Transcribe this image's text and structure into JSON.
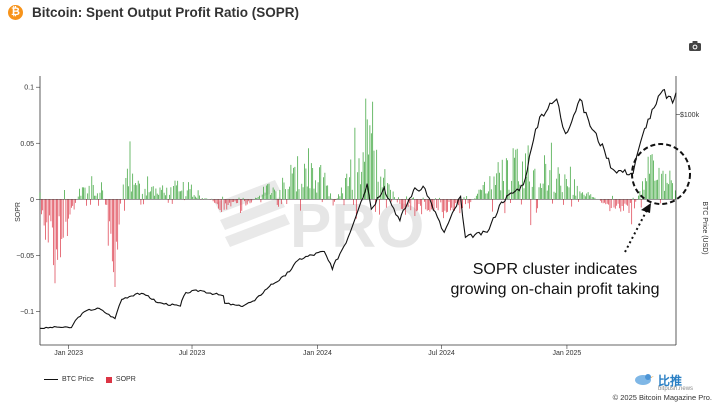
{
  "header": {
    "logo_glyph": "₿",
    "title": "Bitcoin: Spent Output Profit Ratio (SOPR)"
  },
  "toolbar": {
    "camera_icon": "camera-icon"
  },
  "chart_data": {
    "type": "bar",
    "title": "Bitcoin: Spent Output Profit Ratio (SOPR)",
    "x_range": [
      "2022-11-20",
      "2025-06-10"
    ],
    "x_ticks": [
      {
        "date": "2023-01-01",
        "label": "Jan 2023"
      },
      {
        "date": "2023-07-01",
        "label": "Jul 2023"
      },
      {
        "date": "2024-01-01",
        "label": "Jan 2024"
      },
      {
        "date": "2024-07-01",
        "label": "Jul 2024"
      },
      {
        "date": "2025-01-01",
        "label": "Jan 2025"
      }
    ],
    "y_left": {
      "label": "SOPR",
      "range": [
        -0.13,
        0.11
      ],
      "ticks": [
        {
          "v": 0.1,
          "label": "0.1"
        },
        {
          "v": 0.05,
          "label": "0.05"
        },
        {
          "v": 0,
          "label": "0"
        },
        {
          "v": -0.05,
          "label": "−0.05"
        },
        {
          "v": -0.1,
          "label": "−0.1"
        }
      ]
    },
    "y_right": {
      "label": "BTC Price (USD)",
      "range": [
        10000,
        115000
      ],
      "ticks": [
        {
          "v": 100000,
          "label": "$100k"
        }
      ]
    },
    "grid": false,
    "legend_position": "bottom-left",
    "colors": {
      "positive": "#2e9e2e",
      "negative": "#dc3545",
      "price": "#111111"
    },
    "btc_price": {
      "name": "BTC Price",
      "points": [
        [
          "2022-11-20",
          16500
        ],
        [
          "2022-12-15",
          17000
        ],
        [
          "2023-01-05",
          16800
        ],
        [
          "2023-01-15",
          20800
        ],
        [
          "2023-01-28",
          23500
        ],
        [
          "2023-02-15",
          24300
        ],
        [
          "2023-03-10",
          20300
        ],
        [
          "2023-03-20",
          27800
        ],
        [
          "2023-04-12",
          30200
        ],
        [
          "2023-04-28",
          29200
        ],
        [
          "2023-05-12",
          26500
        ],
        [
          "2023-06-14",
          25200
        ],
        [
          "2023-06-22",
          30500
        ],
        [
          "2023-07-13",
          31300
        ],
        [
          "2023-08-16",
          29200
        ],
        [
          "2023-08-18",
          26300
        ],
        [
          "2023-09-11",
          25100
        ],
        [
          "2023-10-01",
          27300
        ],
        [
          "2023-10-23",
          33000
        ],
        [
          "2023-11-15",
          37000
        ],
        [
          "2023-12-06",
          43700
        ],
        [
          "2024-01-11",
          46500
        ],
        [
          "2024-01-23",
          39500
        ],
        [
          "2024-02-15",
          52000
        ],
        [
          "2024-03-05",
          66000
        ],
        [
          "2024-03-14",
          73000
        ],
        [
          "2024-03-20",
          63000
        ],
        [
          "2024-04-08",
          71500
        ],
        [
          "2024-05-01",
          58500
        ],
        [
          "2024-05-21",
          70500
        ],
        [
          "2024-06-07",
          71000
        ],
        [
          "2024-07-05",
          54000
        ],
        [
          "2024-07-29",
          68000
        ],
        [
          "2024-08-05",
          52000
        ],
        [
          "2024-09-06",
          54000
        ],
        [
          "2024-09-27",
          65800
        ],
        [
          "2024-10-29",
          72500
        ],
        [
          "2024-11-13",
          90000
        ],
        [
          "2024-11-22",
          99000
        ],
        [
          "2024-12-17",
          106000
        ],
        [
          "2024-12-30",
          92500
        ],
        [
          "2025-01-20",
          106000
        ],
        [
          "2025-02-02",
          97500
        ],
        [
          "2025-02-25",
          86000
        ],
        [
          "2025-03-10",
          78500
        ],
        [
          "2025-04-08",
          77000
        ],
        [
          "2025-04-25",
          94500
        ],
        [
          "2025-05-12",
          104000
        ],
        [
          "2025-05-22",
          109500
        ],
        [
          "2025-06-05",
          104500
        ],
        [
          "2025-06-10",
          108500
        ]
      ]
    },
    "sopr": {
      "name": "SOPR",
      "envelope": [
        [
          "2022-11-20",
          -0.045
        ],
        [
          "2022-12-10",
          -0.12
        ],
        [
          "2023-01-05",
          -0.03
        ],
        [
          "2023-01-20",
          0.03
        ],
        [
          "2023-02-20",
          0.015
        ],
        [
          "2023-03-10",
          -0.12
        ],
        [
          "2023-03-25",
          0.06
        ],
        [
          "2023-05-01",
          0.018
        ],
        [
          "2023-06-01",
          0.02
        ],
        [
          "2023-07-01",
          0.015
        ],
        [
          "2023-08-18",
          -0.015
        ],
        [
          "2023-09-20",
          -0.012
        ],
        [
          "2023-10-25",
          0.03
        ],
        [
          "2023-12-05",
          0.06
        ],
        [
          "2024-01-10",
          0.045
        ],
        [
          "2024-01-25",
          -0.01
        ],
        [
          "2024-03-05",
          0.095
        ],
        [
          "2024-03-14",
          0.11
        ],
        [
          "2024-05-01",
          -0.015
        ],
        [
          "2024-07-05",
          -0.018
        ],
        [
          "2024-08-05",
          -0.02
        ],
        [
          "2024-09-20",
          0.06
        ],
        [
          "2024-11-13",
          0.08
        ],
        [
          "2024-12-05",
          0.055
        ],
        [
          "2025-01-10",
          0.03
        ],
        [
          "2025-03-10",
          -0.02
        ],
        [
          "2025-04-08",
          -0.025
        ],
        [
          "2025-04-25",
          0.04
        ],
        [
          "2025-05-20",
          0.045
        ],
        [
          "2025-06-10",
          0.02
        ]
      ]
    },
    "annotation": {
      "text_line1": "SOPR cluster indicates",
      "text_line2": "growing on-chain profit taking"
    }
  },
  "legend": {
    "price_label": "BTC Price",
    "sopr_label": "SOPR"
  },
  "watermark": {
    "text": "PRO"
  },
  "footer": {
    "copyright": "© 2025 Bitcoin Magazine Pro.",
    "source_text": "比推",
    "source_domain": "bitpush.news"
  }
}
